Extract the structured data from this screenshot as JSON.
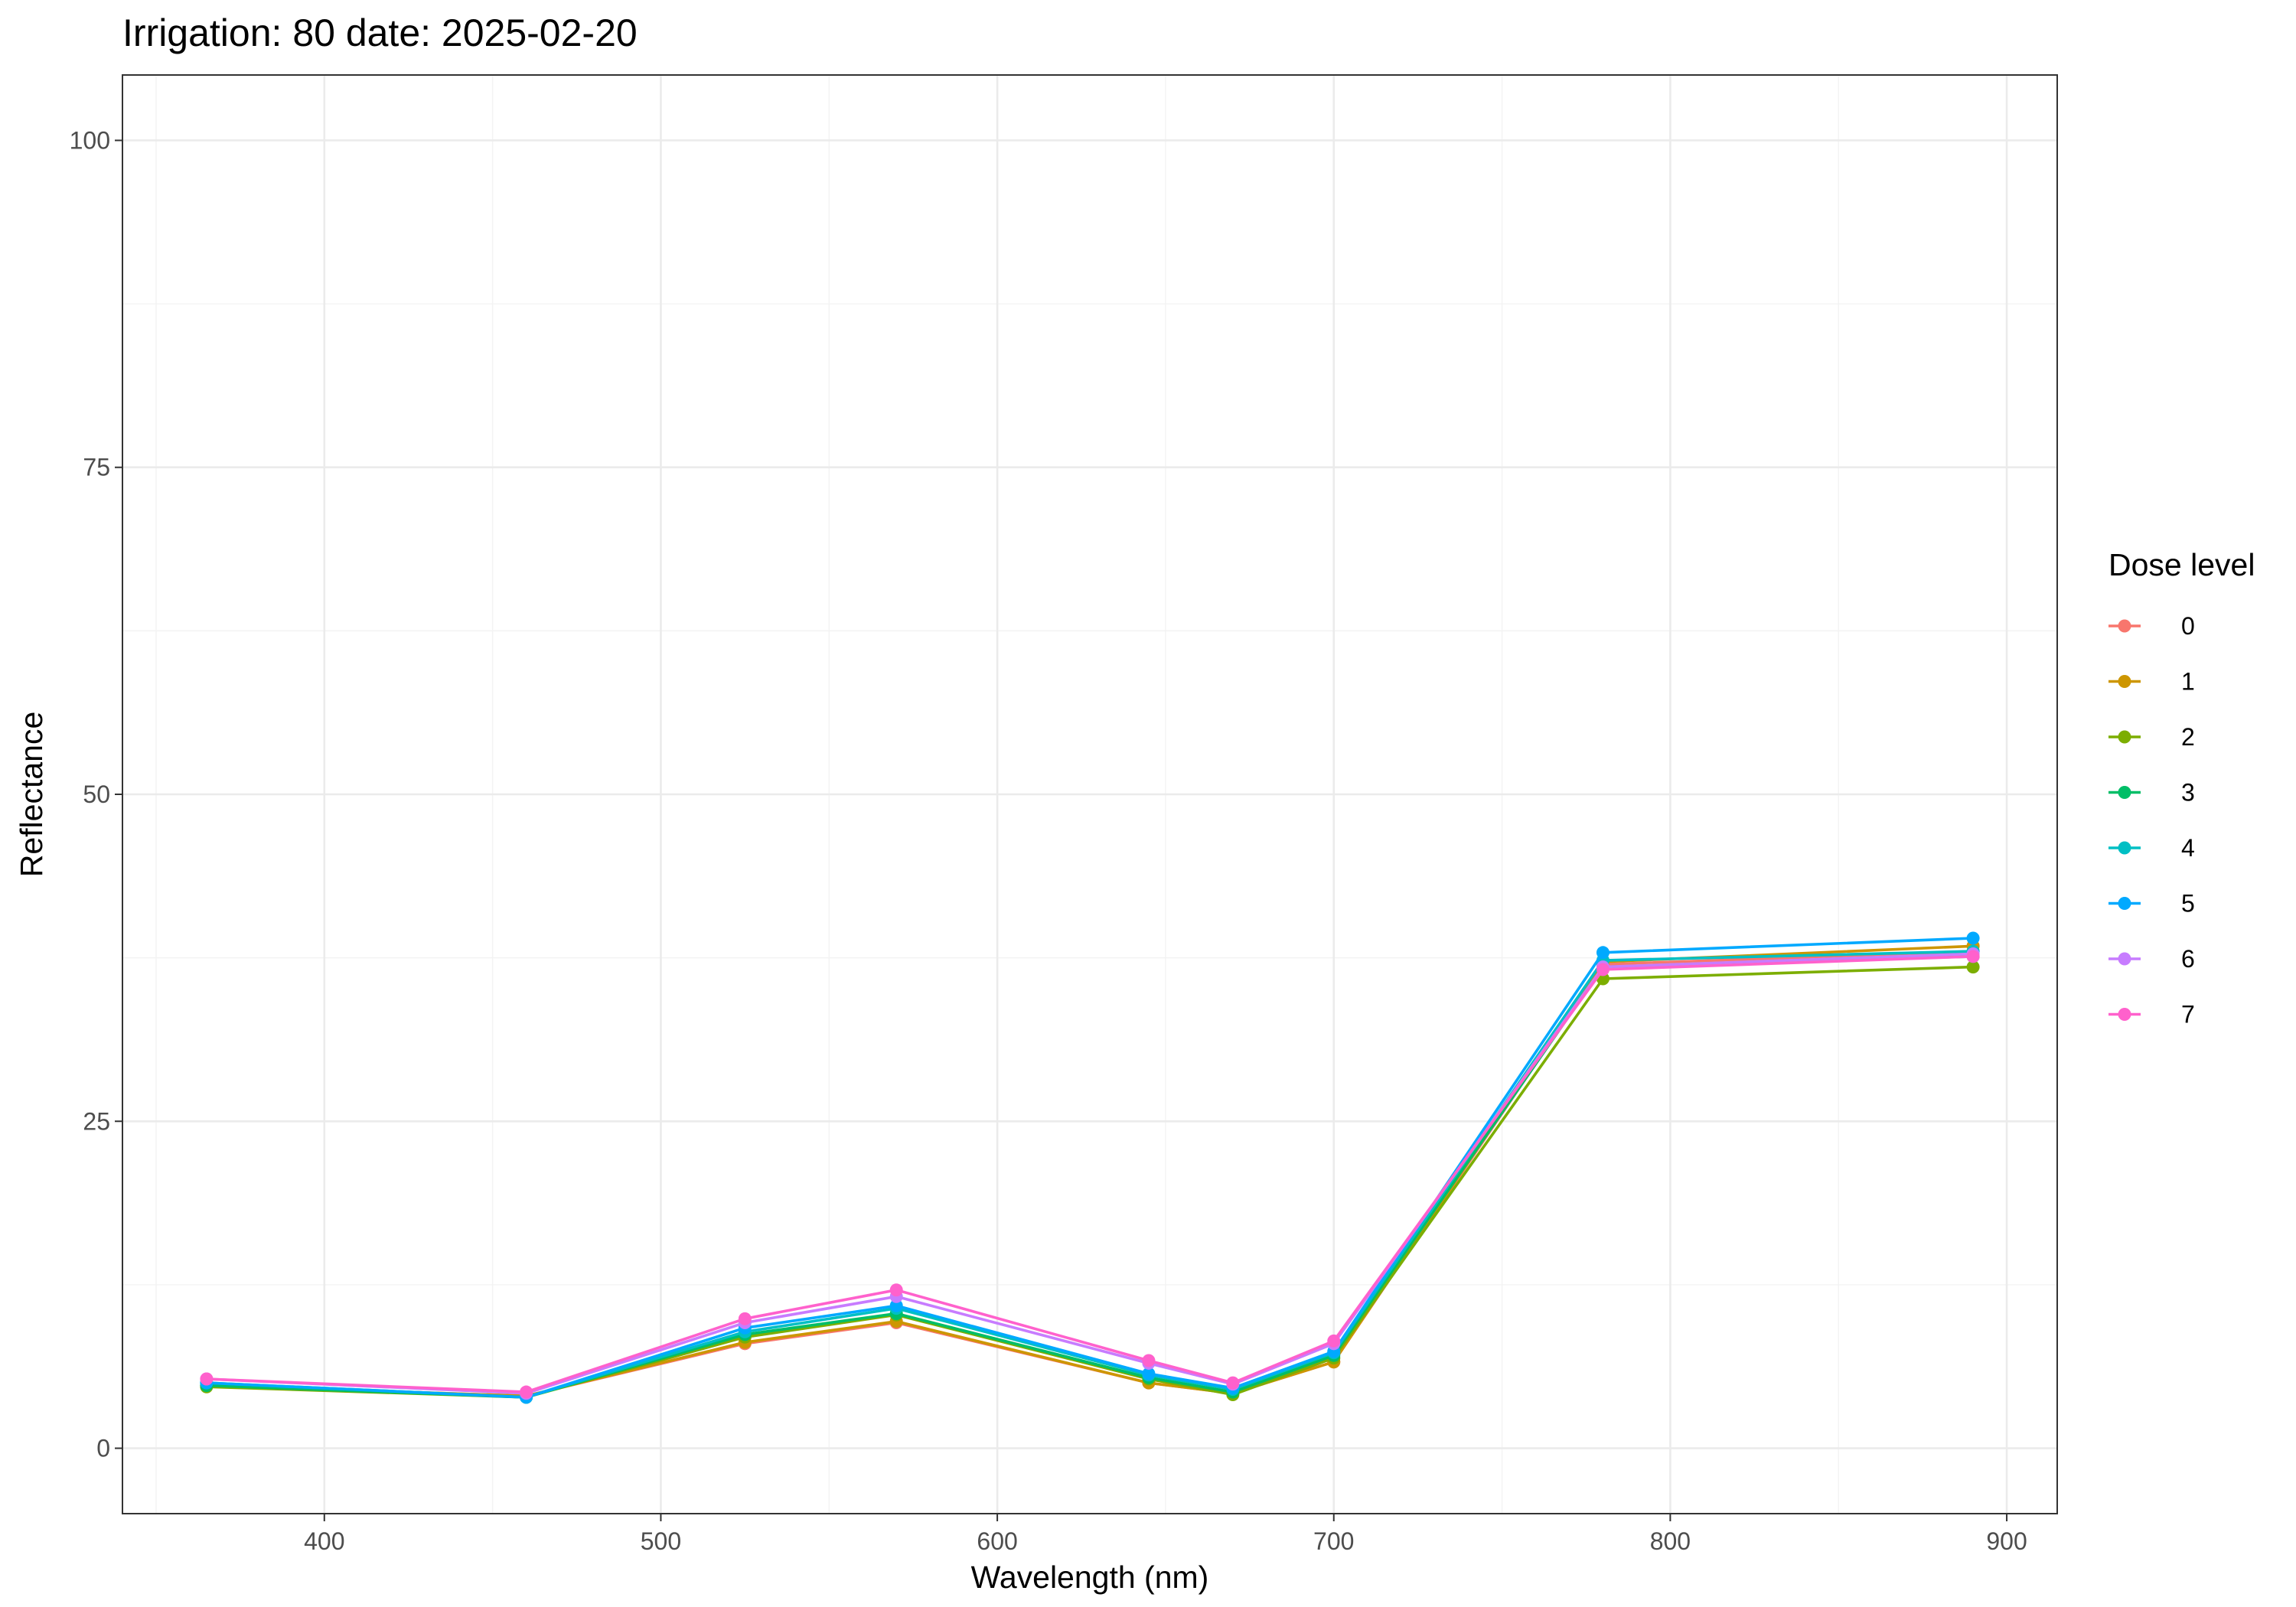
{
  "chart_data": {
    "type": "line",
    "title": "Irrigation: 80 date: 2025-02-20",
    "xlabel": "Wavelength (nm)",
    "ylabel": "Reflectance",
    "xlim": [
      340,
      915
    ],
    "ylim": [
      -5,
      105
    ],
    "x_ticks": [
      400,
      500,
      600,
      700,
      800,
      900
    ],
    "x_tick_labels": [
      "400",
      "500",
      "600",
      "700",
      "800",
      "900"
    ],
    "y_ticks": [
      0,
      25,
      50,
      75,
      100
    ],
    "y_tick_labels": [
      "0",
      "25",
      "50",
      "75",
      "100"
    ],
    "x_minor_ticks": [
      350,
      450,
      550,
      650,
      750,
      850
    ],
    "y_minor_ticks": [
      12.5,
      37.5,
      62.5,
      87.5
    ],
    "grid": true,
    "legend": {
      "title": "Dose level",
      "position": "right"
    },
    "x": [
      365,
      460,
      525,
      570,
      645,
      670,
      700,
      780,
      890
    ],
    "series": [
      {
        "name": "0",
        "color": "#F8766D",
        "values": [
          4.8,
          4.0,
          8.0,
          9.6,
          5.0,
          4.2,
          6.6,
          37.0,
          38.0
        ]
      },
      {
        "name": "1",
        "color": "#CD9600",
        "values": [
          4.8,
          4.0,
          8.1,
          9.7,
          5.0,
          4.2,
          6.6,
          37.2,
          38.4
        ]
      },
      {
        "name": "2",
        "color": "#7CAE00",
        "values": [
          4.7,
          3.9,
          8.5,
          10.2,
          5.3,
          4.1,
          6.9,
          35.9,
          36.8
        ]
      },
      {
        "name": "3",
        "color": "#00BE67",
        "values": [
          4.8,
          3.9,
          8.7,
          10.3,
          5.4,
          4.3,
          7.1,
          36.8,
          37.6
        ]
      },
      {
        "name": "4",
        "color": "#00BFC4",
        "values": [
          5.0,
          3.9,
          8.9,
          10.7,
          5.6,
          4.5,
          7.3,
          37.3,
          38.0
        ]
      },
      {
        "name": "5",
        "color": "#00A9FF",
        "values": [
          5.0,
          3.9,
          9.2,
          10.9,
          5.7,
          4.6,
          7.4,
          37.9,
          39.0
        ]
      },
      {
        "name": "6",
        "color": "#C77CFF",
        "values": [
          5.3,
          4.2,
          9.6,
          11.6,
          6.5,
          4.9,
          8.0,
          36.8,
          37.8
        ]
      },
      {
        "name": "7",
        "color": "#FF61CC",
        "values": [
          5.3,
          4.3,
          9.9,
          12.1,
          6.7,
          5.0,
          8.2,
          36.6,
          37.6
        ]
      }
    ]
  }
}
